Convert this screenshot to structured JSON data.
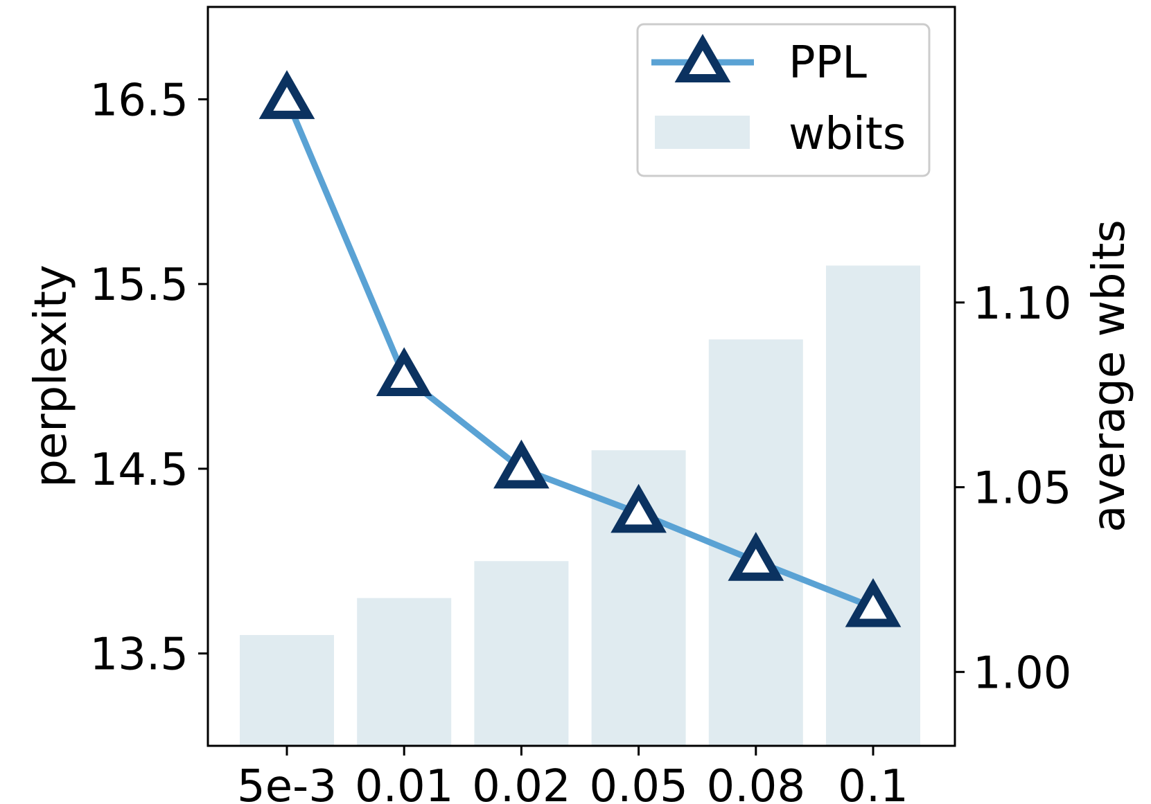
{
  "chart_data": {
    "type": "bar+line",
    "categories": [
      "5e-3",
      "0.01",
      "0.02",
      "0.05",
      "0.08",
      "0.1"
    ],
    "series": [
      {
        "name": "PPL",
        "type": "line",
        "axis": "left",
        "values": [
          16.5,
          15.0,
          14.5,
          14.26,
          14.0,
          13.75
        ],
        "color": "#5aa2d4",
        "marker_color": "#0b3260"
      },
      {
        "name": "wbits",
        "type": "bar",
        "axis": "right",
        "values": [
          1.01,
          1.02,
          1.03,
          1.06,
          1.09,
          1.11
        ],
        "color": "#e0ebf0"
      }
    ],
    "ylabel": "perplexity",
    "y2label": "average wbits",
    "ylim": [
      13.0,
      17.0
    ],
    "y2lim": [
      0.98,
      1.18
    ],
    "yticks": [
      {
        "value": 13.5,
        "label": "13.5"
      },
      {
        "value": 14.5,
        "label": "14.5"
      },
      {
        "value": 15.5,
        "label": "15.5"
      },
      {
        "value": 16.5,
        "label": "16.5"
      }
    ],
    "y2ticks": [
      {
        "value": 1.0,
        "label": "1.00"
      },
      {
        "value": 1.05,
        "label": "1.05"
      },
      {
        "value": 1.1,
        "label": "1.10"
      }
    ],
    "legend": {
      "position": "top-right",
      "entries": [
        "PPL",
        "wbits"
      ]
    },
    "grid": false
  }
}
